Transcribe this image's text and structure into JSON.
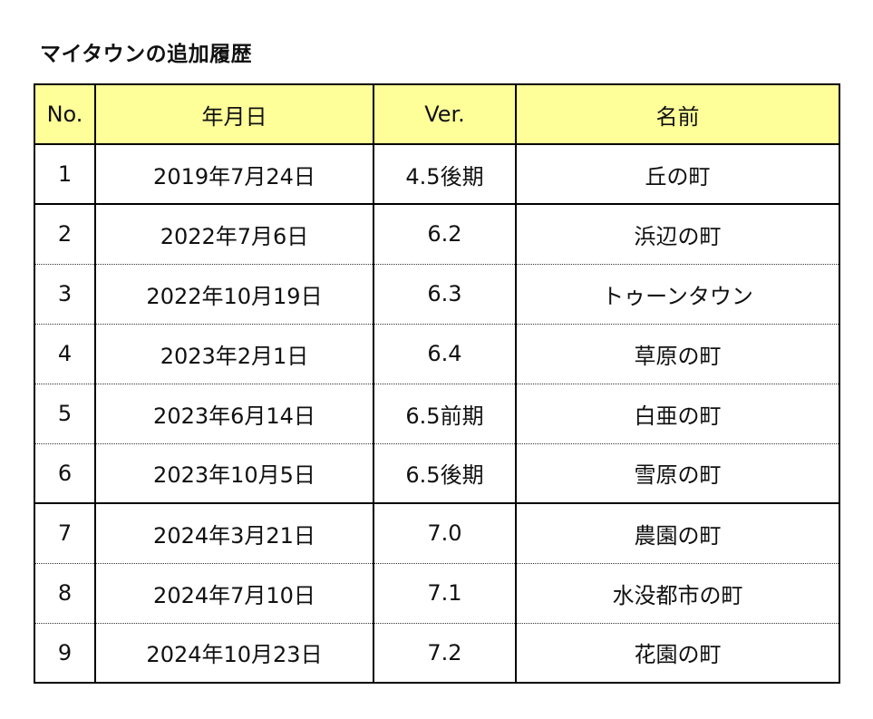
{
  "title": "マイタウンの追加履歴",
  "table": {
    "headers": {
      "no": "No.",
      "date": "年月日",
      "ver": "Ver.",
      "name": "名前"
    },
    "header_bg": "#ffff99",
    "rows": [
      {
        "no": "1",
        "date": "2019年7月24日",
        "ver": "4.5後期",
        "name": "丘の町"
      },
      {
        "no": "2",
        "date": "2022年7月6日",
        "ver": "6.2",
        "name": "浜辺の町"
      },
      {
        "no": "3",
        "date": "2022年10月19日",
        "ver": "6.3",
        "name": "トゥーンタウン"
      },
      {
        "no": "4",
        "date": "2023年2月1日",
        "ver": "6.4",
        "name": "草原の町"
      },
      {
        "no": "5",
        "date": "2023年6月14日",
        "ver": "6.5前期",
        "name": "白亜の町"
      },
      {
        "no": "6",
        "date": "2023年10月5日",
        "ver": "6.5後期",
        "name": "雪原の町"
      },
      {
        "no": "7",
        "date": "2024年3月21日",
        "ver": "7.0",
        "name": "農園の町"
      },
      {
        "no": "8",
        "date": "2024年7月10日",
        "ver": "7.1",
        "name": "水没都市の町"
      },
      {
        "no": "9",
        "date": "2024年10月23日",
        "ver": "7.2",
        "name": "花園の町"
      }
    ]
  }
}
